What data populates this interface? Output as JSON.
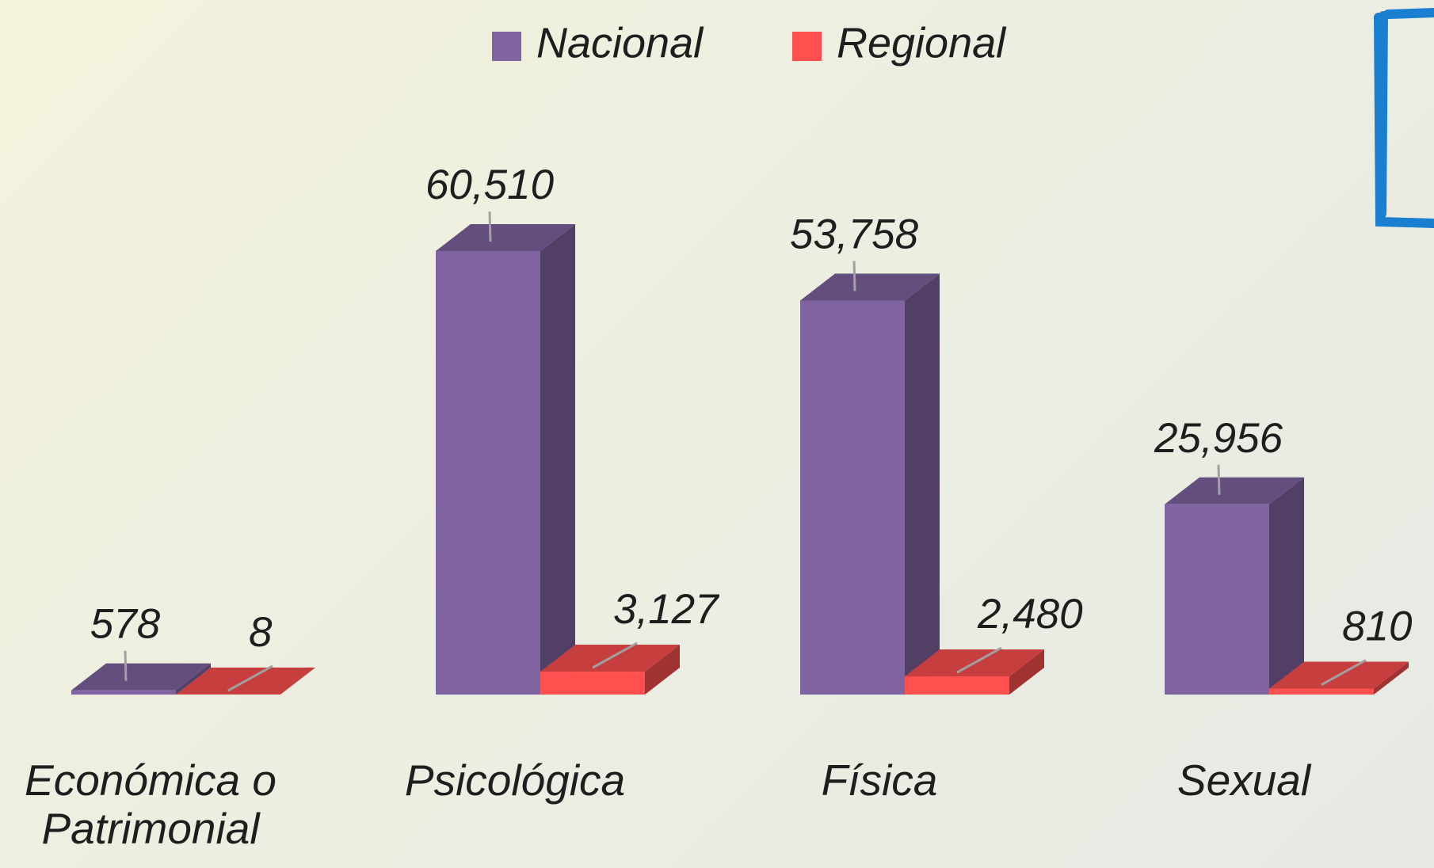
{
  "chart_data": {
    "type": "bar3d",
    "categories": [
      "Económica o Patrimonial",
      "Psicológica",
      "Física",
      "Sexual"
    ],
    "series": [
      {
        "name": "Nacional",
        "color": "#8064a2",
        "values": [
          578,
          60510,
          53758,
          25956
        ],
        "value_labels": [
          "578",
          "60,510",
          "53,758",
          "25,956"
        ]
      },
      {
        "name": "Regional",
        "color": "#ff4f4f",
        "values": [
          8,
          3127,
          2480,
          810
        ],
        "value_labels": [
          "8",
          "3,127",
          "2,480",
          "810"
        ]
      }
    ],
    "legend": "top"
  }
}
